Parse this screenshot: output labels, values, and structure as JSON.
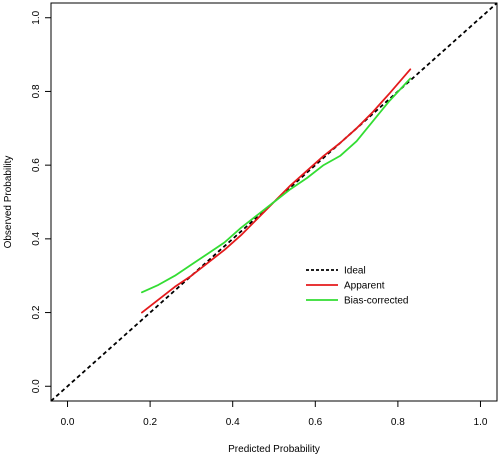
{
  "chart_data": {
    "type": "line",
    "title": "",
    "xlabel": "Predicted Probability",
    "ylabel": "Observed Probability",
    "xlim": [
      -0.04,
      1.04
    ],
    "ylim": [
      -0.04,
      1.04
    ],
    "x_ticks": [
      0.0,
      0.2,
      0.4,
      0.6,
      0.8,
      1.0
    ],
    "y_ticks": [
      0.0,
      0.2,
      0.4,
      0.6,
      0.8,
      1.0
    ],
    "x_tick_labels": [
      "0.0",
      "0.2",
      "0.4",
      "0.6",
      "0.8",
      "1.0"
    ],
    "y_tick_labels": [
      "0.0",
      "0.2",
      "0.4",
      "0.6",
      "0.8",
      "1.0"
    ],
    "grid": false,
    "legend_position": "center-right",
    "series": [
      {
        "name": "Ideal",
        "color": "#000000",
        "style": "dashed",
        "x": [
          -0.04,
          1.04
        ],
        "y": [
          -0.04,
          1.04
        ]
      },
      {
        "name": "Apparent",
        "color": "#e41a1c",
        "style": "solid",
        "x": [
          0.18,
          0.22,
          0.26,
          0.3,
          0.34,
          0.38,
          0.42,
          0.46,
          0.5,
          0.54,
          0.58,
          0.62,
          0.66,
          0.7,
          0.74,
          0.78,
          0.83
        ],
        "y": [
          0.2,
          0.235,
          0.27,
          0.3,
          0.335,
          0.37,
          0.41,
          0.455,
          0.5,
          0.545,
          0.585,
          0.625,
          0.66,
          0.7,
          0.745,
          0.795,
          0.86
        ]
      },
      {
        "name": "Bias-corrected",
        "color": "#33dd33",
        "style": "solid",
        "x": [
          0.18,
          0.22,
          0.26,
          0.3,
          0.34,
          0.38,
          0.42,
          0.46,
          0.5,
          0.54,
          0.58,
          0.62,
          0.66,
          0.7,
          0.74,
          0.78,
          0.83
        ],
        "y": [
          0.255,
          0.275,
          0.3,
          0.33,
          0.36,
          0.39,
          0.43,
          0.465,
          0.5,
          0.535,
          0.565,
          0.6,
          0.625,
          0.665,
          0.72,
          0.775,
          0.835
        ]
      }
    ]
  }
}
